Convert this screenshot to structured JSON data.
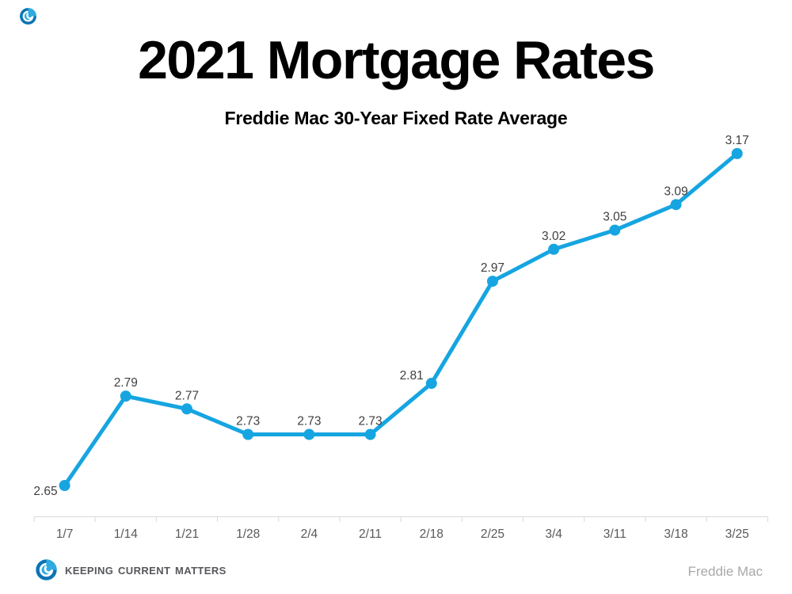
{
  "page": {
    "title": "2021 Mortgage Rates",
    "subtitle": "Freddie Mac 30-Year Fixed Rate Average"
  },
  "footer": {
    "brand_name": "Keeping Current Matters",
    "brand_icon": "swirl-icon",
    "source_label": "Freddie Mac"
  },
  "colors": {
    "line": "#16a5e1",
    "marker": "#16a5e1",
    "axis_line": "#d9d9d9",
    "tick_label": "#595959",
    "data_label": "#404040",
    "title_text": "#000000",
    "source_text": "#a9a9a9",
    "brand_text": "#56575b",
    "swirl_light": "#2fabe1",
    "swirl_dark": "#0f72b2"
  },
  "chart_data": {
    "type": "line",
    "title": "2021 Mortgage Rates",
    "subtitle": "Freddie Mac 30-Year Fixed Rate Average",
    "categories": [
      "1/7",
      "1/14",
      "1/21",
      "1/28",
      "2/4",
      "2/11",
      "2/18",
      "2/25",
      "3/4",
      "3/11",
      "3/18",
      "3/25"
    ],
    "series": [
      {
        "name": "Freddie Mac 30-Year Fixed Rate Average",
        "values": [
          2.65,
          2.79,
          2.77,
          2.73,
          2.73,
          2.73,
          2.81,
          2.97,
          3.02,
          3.05,
          3.09,
          3.17
        ]
      }
    ],
    "data_labels": [
      "2.65",
      "2.79",
      "2.77",
      "2.73",
      "2.73",
      "2.73",
      "2.81",
      "2.97",
      "3.02",
      "3.05",
      "3.09",
      "3.17"
    ],
    "xlabel": "",
    "ylabel": "",
    "ylim": [
      2.6,
      3.25
    ],
    "y_axis_visible": false,
    "gridlines": false,
    "legend_position": "none",
    "marker": "circle",
    "data_label_position": "above"
  }
}
